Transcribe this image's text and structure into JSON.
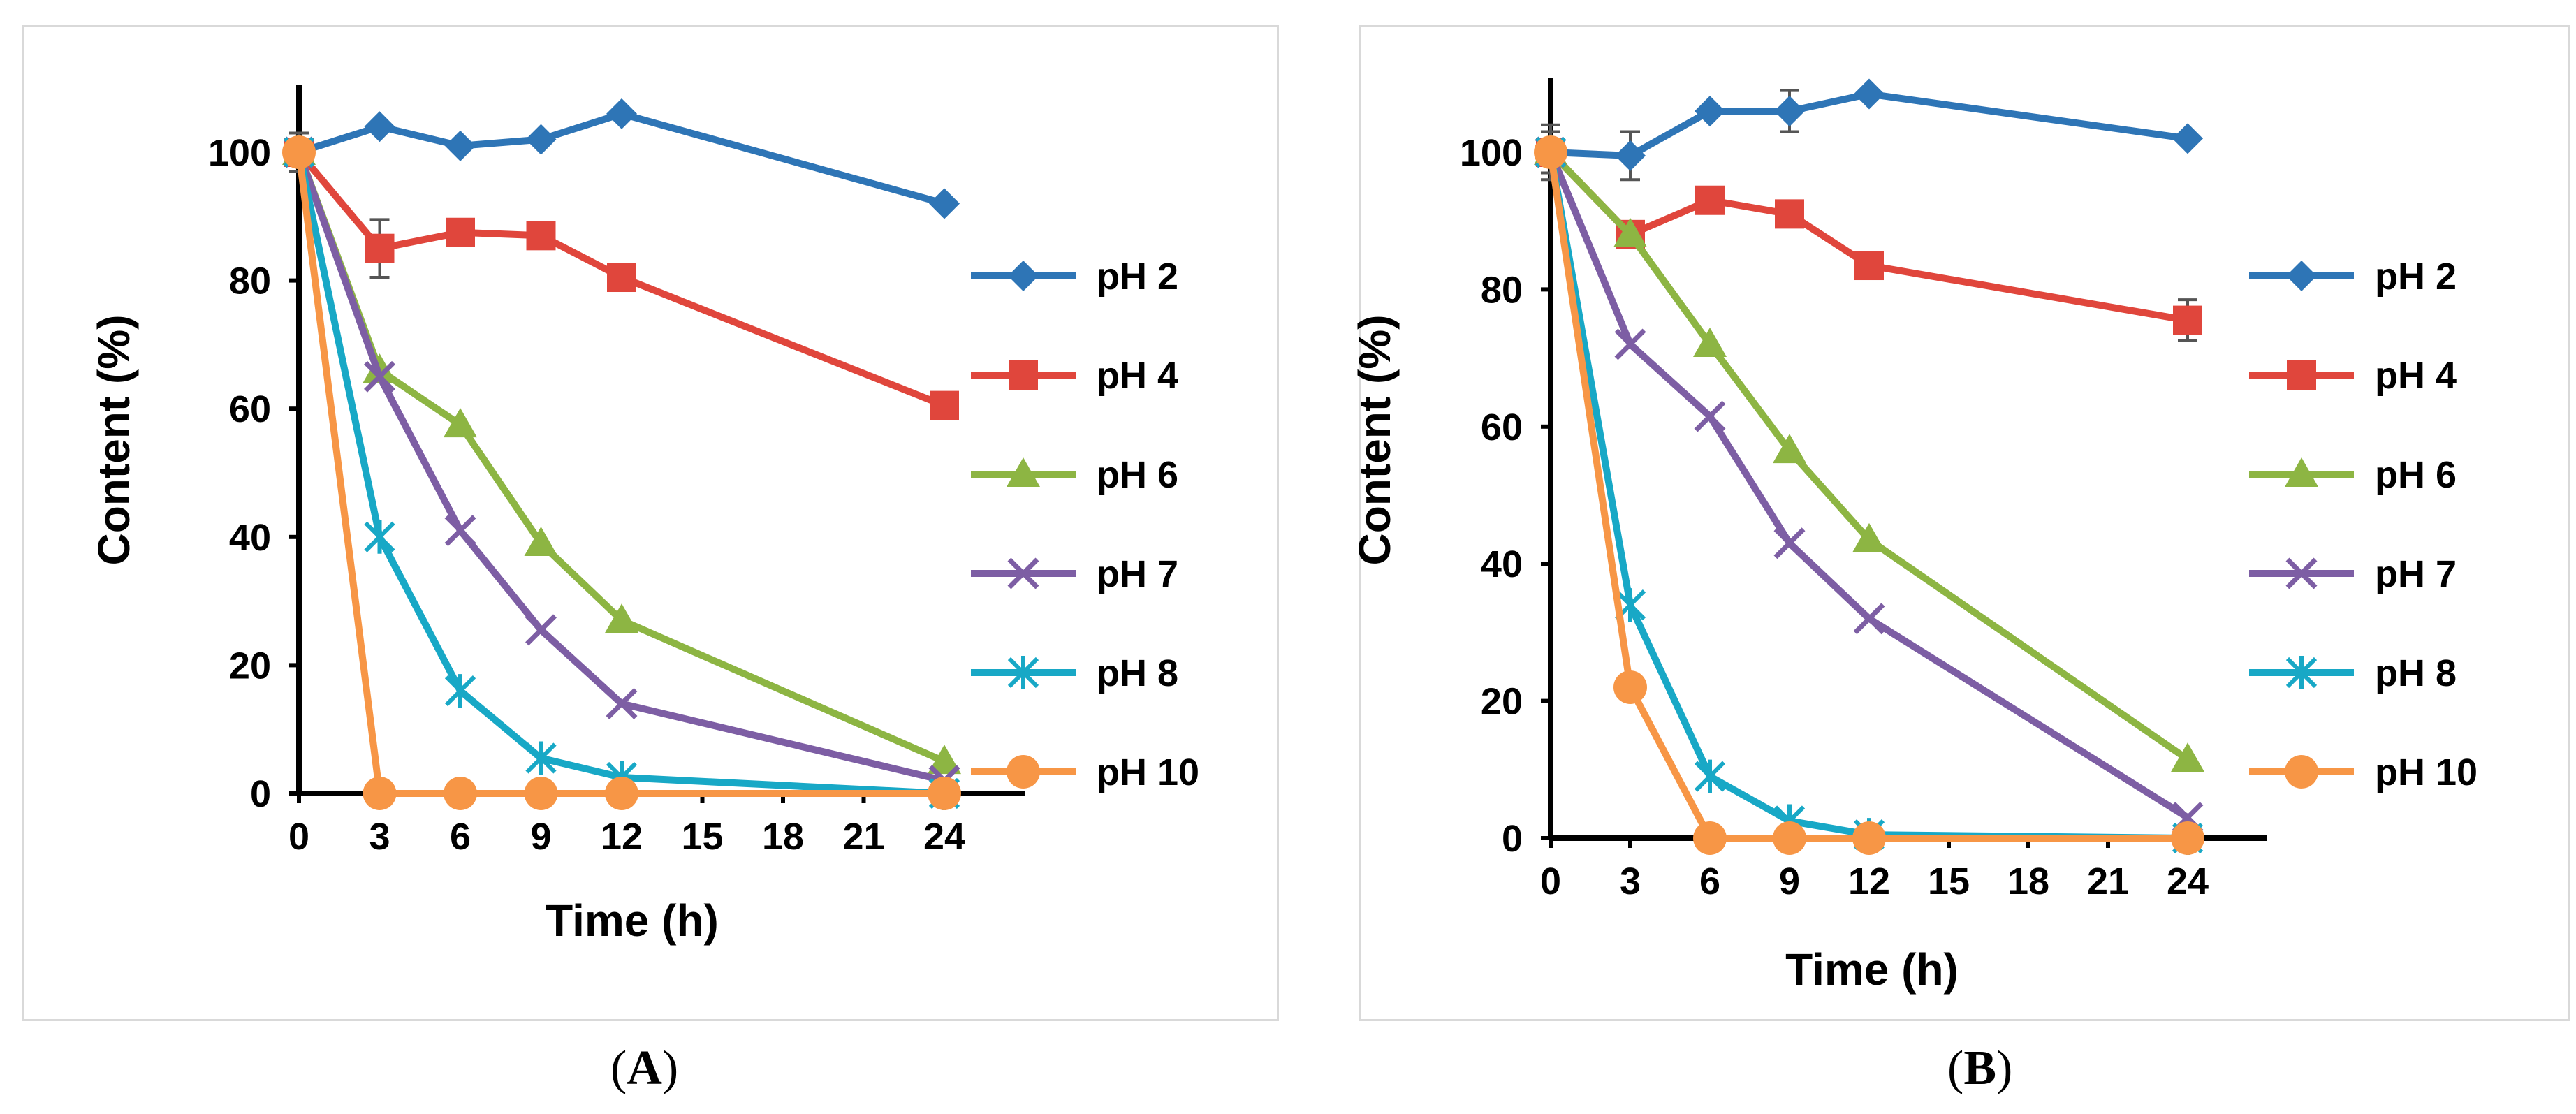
{
  "chart_data": [
    {
      "type": "line",
      "panel_label": "A",
      "caption_open": "(",
      "caption_close": ")",
      "xlabel": "Time (h)",
      "ylabel": "Content (%)",
      "x": [
        0,
        3,
        6,
        9,
        12,
        24
      ],
      "xticks": [
        0,
        3,
        6,
        9,
        12,
        15,
        18,
        21,
        24
      ],
      "yticks": [
        0,
        20,
        40,
        60,
        80,
        100
      ],
      "xlim": [
        0,
        27
      ],
      "ylim": [
        0,
        110
      ],
      "legend_position": "right",
      "series": [
        {
          "name": "pH 2",
          "color": "#2e75b6",
          "marker": "diamond",
          "values": [
            100,
            104,
            101,
            102,
            106,
            92
          ],
          "errors": [
            3,
            0,
            0,
            0,
            0,
            0
          ]
        },
        {
          "name": "pH 4",
          "color": "#e0463c",
          "marker": "square",
          "values": [
            100,
            85,
            87.5,
            87,
            80.5,
            60.5
          ],
          "errors": [
            3,
            4.5,
            0,
            0,
            0,
            0
          ]
        },
        {
          "name": "pH 6",
          "color": "#8db543",
          "marker": "triangle",
          "values": [
            100,
            66,
            57.5,
            39,
            27,
            5
          ],
          "errors": [
            0,
            0,
            0,
            0,
            0,
            0
          ]
        },
        {
          "name": "pH 7",
          "color": "#7d5ea4",
          "marker": "x",
          "values": [
            100,
            65,
            41,
            25.5,
            14,
            2
          ],
          "errors": [
            0,
            0,
            0,
            0,
            0,
            0
          ]
        },
        {
          "name": "pH 8",
          "color": "#18a8c6",
          "marker": "asterisk",
          "values": [
            100,
            40,
            16,
            5.5,
            2.5,
            0
          ],
          "errors": [
            0,
            0,
            0,
            0,
            0,
            0
          ]
        },
        {
          "name": "pH 10",
          "color": "#f79646",
          "marker": "circle",
          "values": [
            100,
            0,
            0,
            0,
            0,
            0
          ],
          "errors": [
            0,
            0,
            0,
            0,
            0,
            0
          ]
        }
      ]
    },
    {
      "type": "line",
      "panel_label": "B",
      "caption_open": "(",
      "caption_close": ")",
      "xlabel": "Time (h)",
      "ylabel": "Content (%)",
      "x": [
        0,
        3,
        6,
        9,
        12,
        24
      ],
      "xticks": [
        0,
        3,
        6,
        9,
        12,
        15,
        18,
        21,
        24
      ],
      "yticks": [
        0,
        20,
        40,
        60,
        80,
        100
      ],
      "xlim": [
        0,
        27
      ],
      "ylim": [
        0,
        110
      ],
      "legend_position": "right",
      "series": [
        {
          "name": "pH 2",
          "color": "#2e75b6",
          "marker": "diamond",
          "values": [
            100,
            99.5,
            106,
            106,
            108.5,
            102
          ],
          "errors": [
            4,
            3.5,
            0,
            3,
            0,
            0
          ]
        },
        {
          "name": "pH 4",
          "color": "#e0463c",
          "marker": "square",
          "values": [
            100,
            88,
            93,
            91,
            83.5,
            75.5
          ],
          "errors": [
            3,
            0,
            0,
            0,
            0,
            3
          ]
        },
        {
          "name": "pH 6",
          "color": "#8db543",
          "marker": "triangle",
          "values": [
            100,
            88,
            72,
            56.5,
            43.5,
            11.5
          ],
          "errors": [
            0,
            0,
            0,
            0,
            0,
            0
          ]
        },
        {
          "name": "pH 7",
          "color": "#7d5ea4",
          "marker": "x",
          "values": [
            100,
            72,
            61.5,
            43,
            32,
            3
          ],
          "errors": [
            0,
            0,
            0,
            0,
            0,
            0
          ]
        },
        {
          "name": "pH 8",
          "color": "#18a8c6",
          "marker": "asterisk",
          "values": [
            100,
            34,
            9,
            2.5,
            0.5,
            0
          ],
          "errors": [
            0,
            0,
            0,
            0,
            0,
            0
          ]
        },
        {
          "name": "pH 10",
          "color": "#f79646",
          "marker": "circle",
          "values": [
            100,
            22,
            0,
            0,
            0,
            0
          ],
          "errors": [
            0,
            0,
            0,
            0,
            0,
            0
          ]
        }
      ]
    }
  ]
}
